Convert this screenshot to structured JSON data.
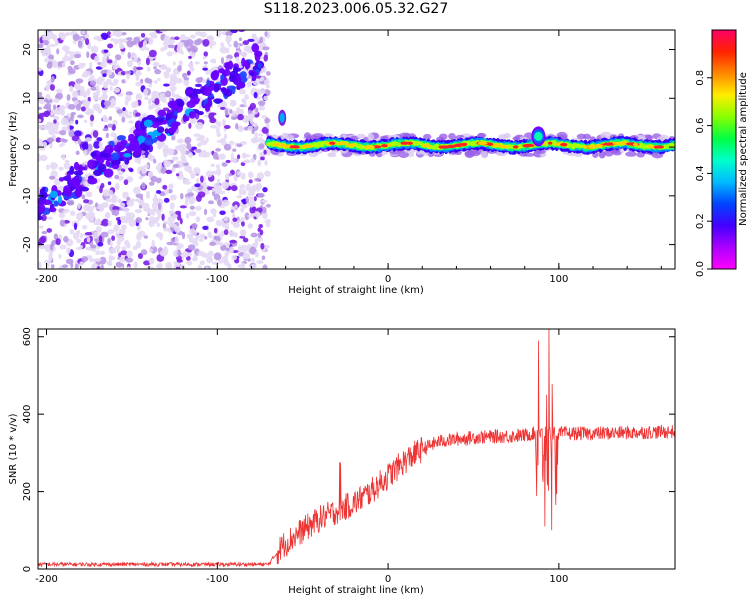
{
  "figure": {
    "title": "S118.2023.006.05.32.G27"
  },
  "chart_data": [
    {
      "type": "heatmap",
      "xlabel": "Height of straight line (km)",
      "ylabel": "Frequency (Hz)",
      "xlim": [
        -205,
        168
      ],
      "ylim": [
        -25,
        24
      ],
      "xticks": [
        -200,
        -100,
        0,
        100
      ],
      "yticks": [
        -20,
        -10,
        0,
        10,
        20
      ],
      "colorbar": {
        "label": "Normalized spectral amplitude",
        "range": [
          0,
          1
        ],
        "ticks": [
          0.0,
          0.2,
          0.4,
          0.6,
          0.8
        ],
        "colormap": [
          "#ffffff",
          "#d8c8f0",
          "#8a2be2",
          "#5a00ff",
          "#0000ff",
          "#00aaff",
          "#00ffff",
          "#00ff66",
          "#66ff00",
          "#ffff00",
          "#ff8800",
          "#ff0000",
          "#ff0066"
        ]
      },
      "features": {
        "noise_region_x": [
          -205,
          -70
        ],
        "diagonal_streak": {
          "x": [
            -205,
            -75
          ],
          "y": [
            -12,
            18
          ]
        },
        "signal_line": {
          "x": [
            -70,
            168
          ],
          "y": [
            0,
            1
          ],
          "peak_near_x": 88
        }
      }
    },
    {
      "type": "line",
      "xlabel": "Height of straight line (km)",
      "ylabel": "SNR (10 * v/v)",
      "xlim": [
        -205,
        168
      ],
      "ylim": [
        0,
        620
      ],
      "xticks": [
        -200,
        -100,
        0,
        100
      ],
      "yticks": [
        0,
        200,
        400,
        600
      ],
      "color": "#ee3333",
      "series_profile": [
        [
          -205,
          12
        ],
        [
          -120,
          12
        ],
        [
          -70,
          12
        ],
        [
          -62,
          60
        ],
        [
          -50,
          100
        ],
        [
          -40,
          130
        ],
        [
          -30,
          150
        ],
        [
          -20,
          170
        ],
        [
          -10,
          200
        ],
        [
          0,
          240
        ],
        [
          10,
          280
        ],
        [
          20,
          310
        ],
        [
          30,
          330
        ],
        [
          50,
          340
        ],
        [
          80,
          345
        ],
        [
          85,
          350
        ],
        [
          100,
          350
        ],
        [
          120,
          350
        ],
        [
          168,
          355
        ]
      ],
      "spikes": [
        {
          "x": 88,
          "y": 590
        },
        {
          "x": 94,
          "y": 620
        },
        {
          "x": 96,
          "y": 100
        },
        {
          "x": 92,
          "y": 110
        },
        {
          "x": -28,
          "y": 275
        }
      ]
    }
  ]
}
